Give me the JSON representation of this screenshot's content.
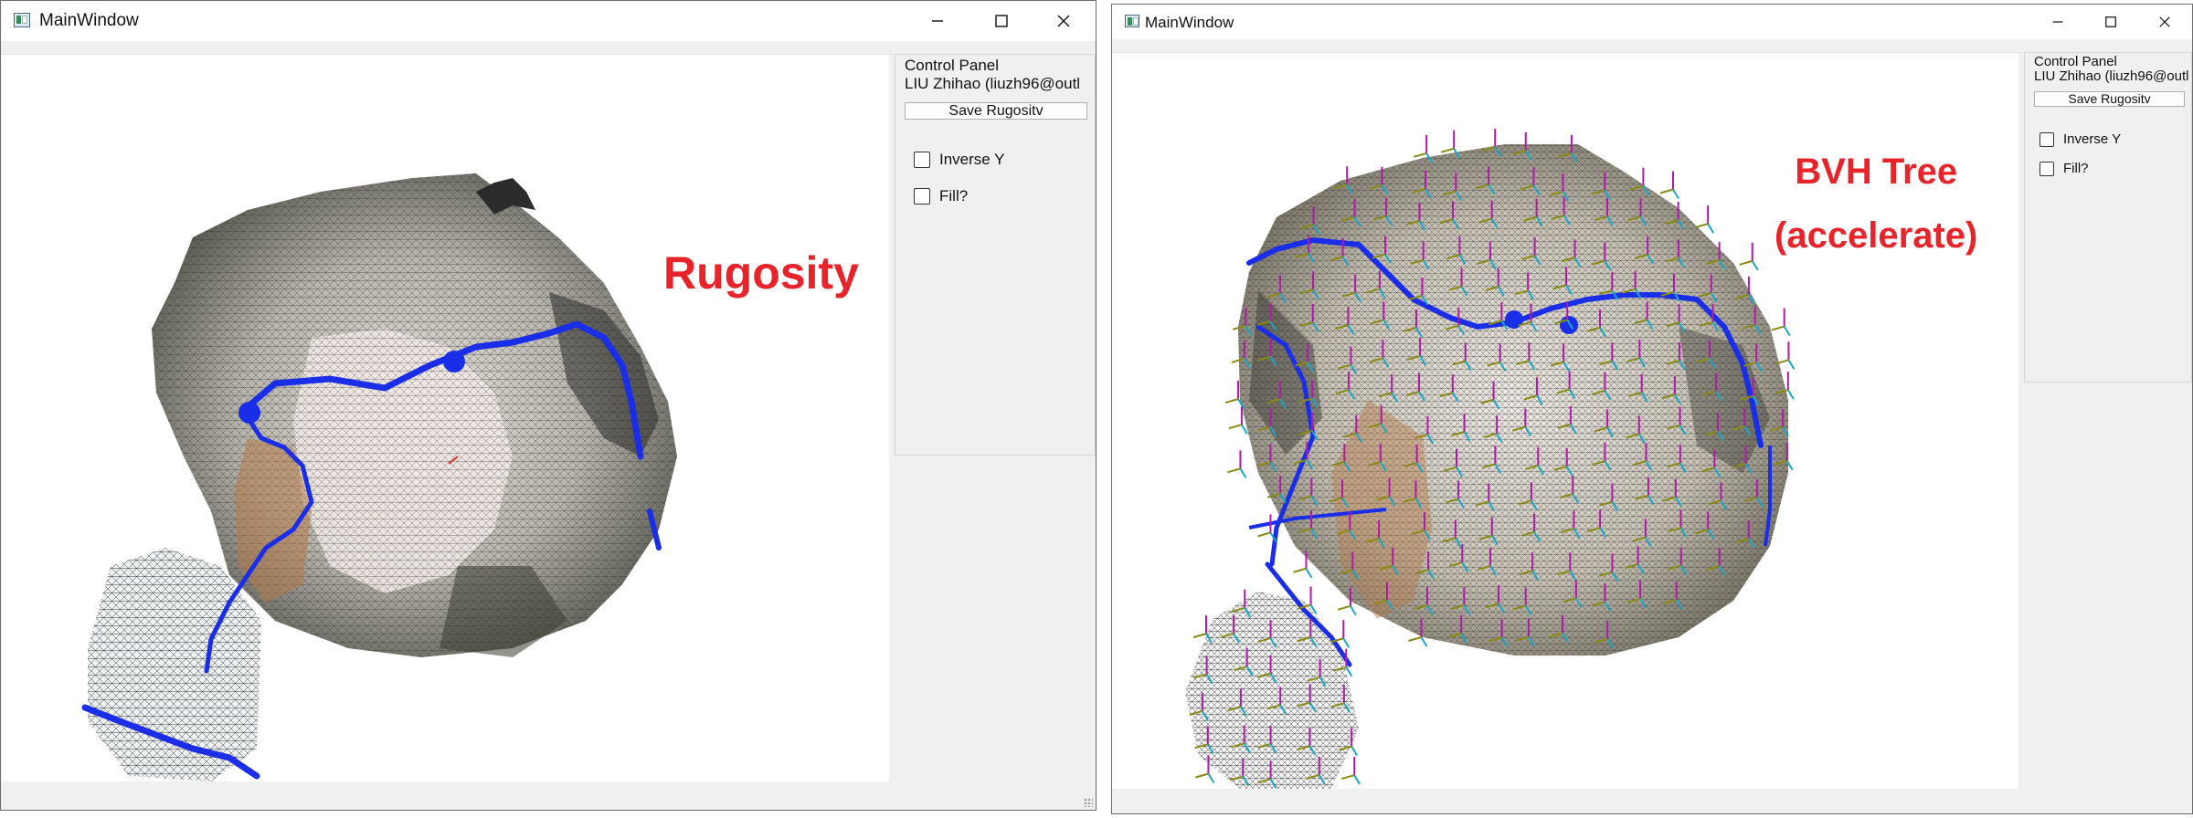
{
  "windows": [
    {
      "title": "MainWindow",
      "overlay_label": [
        "Rugosity"
      ],
      "panel": {
        "title": "Control Panel",
        "author": "LIU Zhihao (liuzh96@outl",
        "save_button": "Save Rugositv",
        "checkboxes": [
          {
            "label": "Inverse Y",
            "checked": false
          },
          {
            "label": "Fill?",
            "checked": false
          }
        ]
      }
    },
    {
      "title": "MainWindow",
      "overlay_label": [
        "BVH Tree",
        "(accelerate)"
      ],
      "panel": {
        "title": "Control Panel",
        "author": "LIU Zhihao (liuzh96@outl",
        "save_button": "Save Rugositv",
        "checkboxes": [
          {
            "label": "Inverse Y",
            "checked": false
          },
          {
            "label": "Fill?",
            "checked": false
          }
        ]
      }
    }
  ],
  "icons": {
    "window_icon": "app-window-icon",
    "minimize": "minimize-icon",
    "maximize": "maximize-icon",
    "close": "close-icon"
  },
  "colors": {
    "overlay_text": "#e8242a",
    "path_line": "#1a2ee8",
    "bvh_axis_magenta": "#b01aa8",
    "bvh_axis_olive": "#8a8a10",
    "bvh_axis_cyan": "#1aa6c8"
  }
}
